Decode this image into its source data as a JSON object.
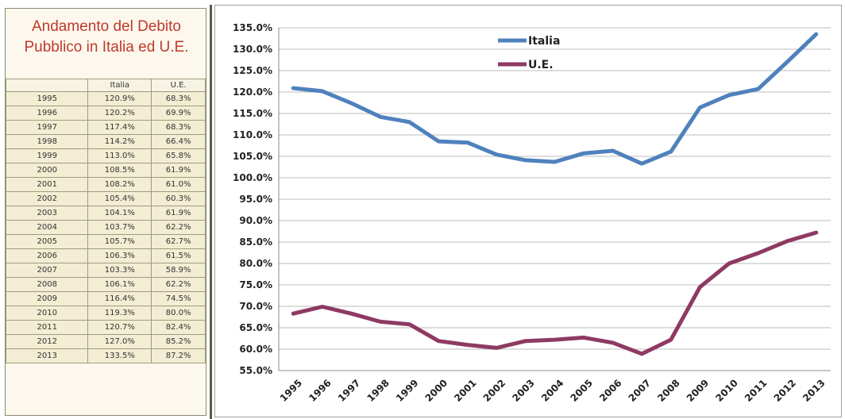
{
  "panel": {
    "title_line1": "Andamento del Debito",
    "title_line2": "Pubblico in Italia ed U.E."
  },
  "table": {
    "headers": [
      "",
      "Italia",
      "U.E."
    ],
    "rows": [
      [
        "1995",
        "120.9%",
        "68.3%"
      ],
      [
        "1996",
        "120.2%",
        "69.9%"
      ],
      [
        "1997",
        "117.4%",
        "68.3%"
      ],
      [
        "1998",
        "114.2%",
        "66.4%"
      ],
      [
        "1999",
        "113.0%",
        "65.8%"
      ],
      [
        "2000",
        "108.5%",
        "61.9%"
      ],
      [
        "2001",
        "108.2%",
        "61.0%"
      ],
      [
        "2002",
        "105.4%",
        "60.3%"
      ],
      [
        "2003",
        "104.1%",
        "61.9%"
      ],
      [
        "2004",
        "103.7%",
        "62.2%"
      ],
      [
        "2005",
        "105.7%",
        "62.7%"
      ],
      [
        "2006",
        "106.3%",
        "61.5%"
      ],
      [
        "2007",
        "103.3%",
        "58.9%"
      ],
      [
        "2008",
        "106.1%",
        "62.2%"
      ],
      [
        "2009",
        "116.4%",
        "74.5%"
      ],
      [
        "2010",
        "119.3%",
        "80.0%"
      ],
      [
        "2011",
        "120.7%",
        "82.4%"
      ],
      [
        "2012",
        "127.0%",
        "85.2%"
      ],
      [
        "2013",
        "133.5%",
        "87.2%"
      ]
    ]
  },
  "chart_data": {
    "type": "line",
    "title": "",
    "xlabel": "",
    "ylabel": "",
    "x": [
      "1995",
      "1996",
      "1997",
      "1998",
      "1999",
      "2000",
      "2001",
      "2002",
      "2003",
      "2004",
      "2005",
      "2006",
      "2007",
      "2008",
      "2009",
      "2010",
      "2011",
      "2012",
      "2013"
    ],
    "series": [
      {
        "name": "Italia",
        "color": "#4f81bd",
        "values": [
          120.9,
          120.2,
          117.4,
          114.2,
          113.0,
          108.5,
          108.2,
          105.4,
          104.1,
          103.7,
          105.7,
          106.3,
          103.3,
          106.1,
          116.4,
          119.3,
          120.7,
          127.0,
          133.5
        ]
      },
      {
        "name": "U.E.",
        "color": "#8e3a62",
        "values": [
          68.3,
          69.9,
          68.3,
          66.4,
          65.8,
          61.9,
          61.0,
          60.3,
          61.9,
          62.2,
          62.7,
          61.5,
          58.9,
          62.2,
          74.5,
          80.0,
          82.4,
          85.2,
          87.2
        ]
      }
    ],
    "ylim": [
      55,
      135
    ],
    "ytick_step": 5,
    "ytick_format": "percent-1dp",
    "grid": true,
    "legend": "top-center"
  }
}
